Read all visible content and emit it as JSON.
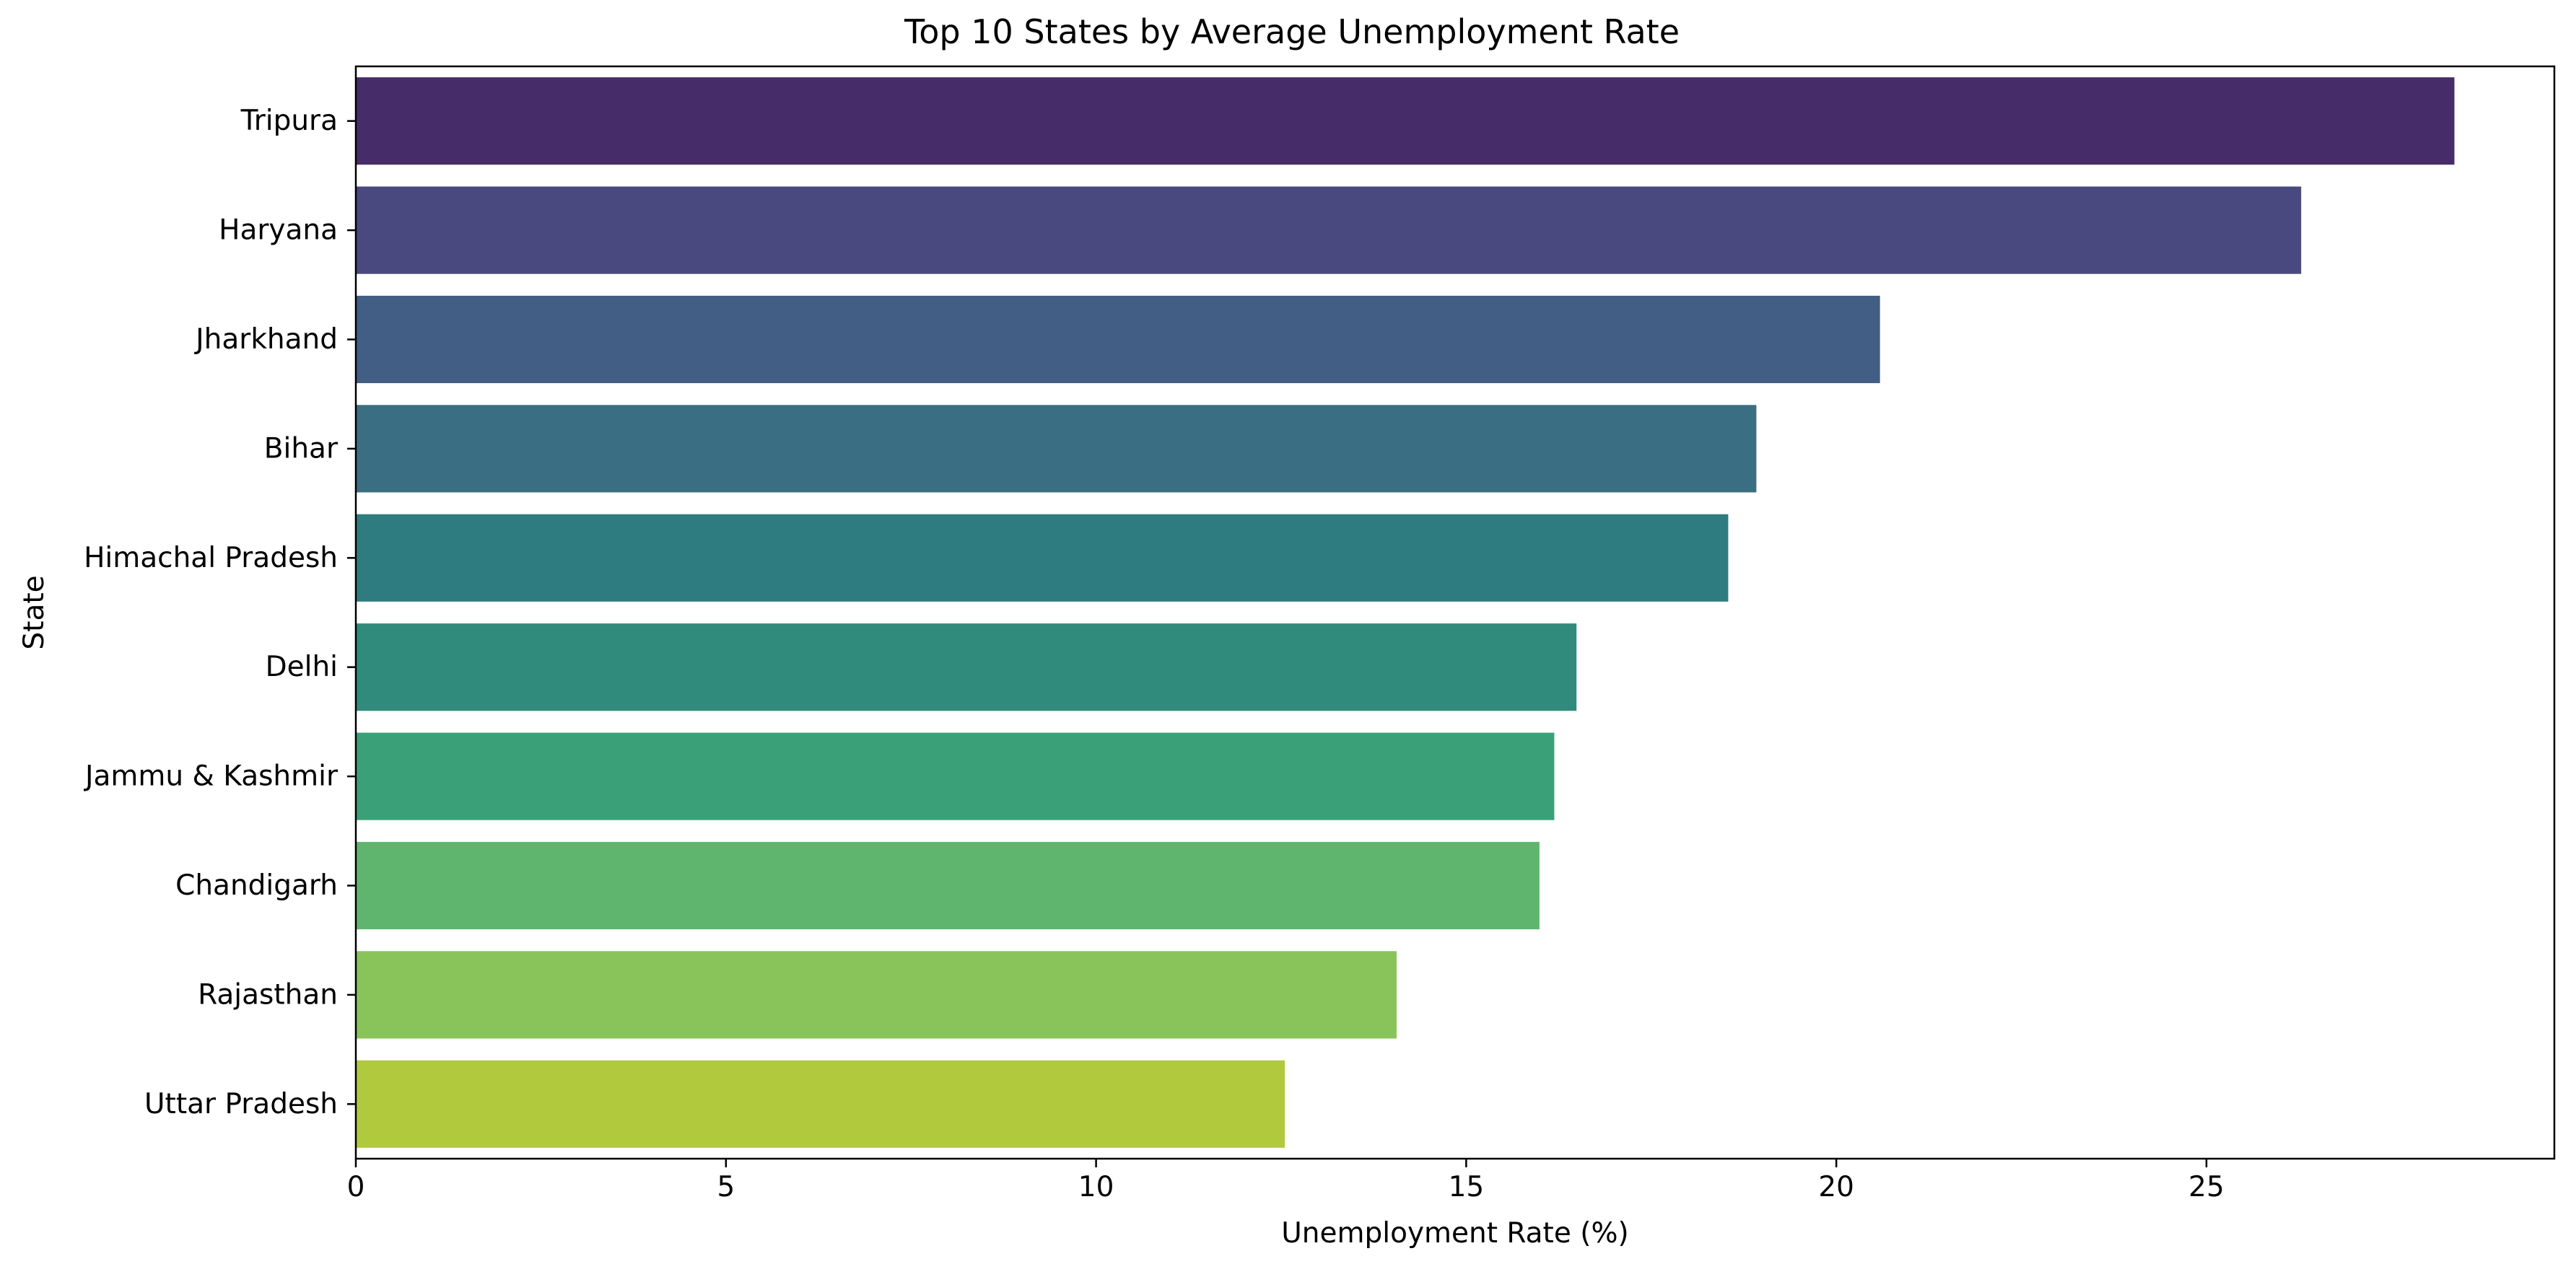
{
  "chart_data": {
    "type": "bar",
    "orientation": "horizontal",
    "title": "Top 10 States by Average Unemployment Rate",
    "xlabel": "Unemployment Rate (%)",
    "ylabel": "State",
    "xlim": [
      0,
      29.7
    ],
    "xticks": [
      0,
      5,
      10,
      15,
      20,
      25
    ],
    "grid": false,
    "legend": "none",
    "categories": [
      "Tripura",
      "Haryana",
      "Jharkhand",
      "Bihar",
      "Himachal Pradesh",
      "Delhi",
      "Jammu & Kashmir",
      "Chandigarh",
      "Rajasthan",
      "Uttar Pradesh"
    ],
    "values": [
      28.35,
      26.28,
      20.59,
      18.92,
      18.54,
      16.49,
      16.19,
      15.99,
      14.06,
      12.55
    ],
    "colors": [
      "#472c6a",
      "#4a497f",
      "#435e84",
      "#3a6e82",
      "#2f7c80",
      "#308b7d",
      "#3aa078",
      "#60b56e",
      "#89c45a",
      "#b1c93c"
    ]
  }
}
